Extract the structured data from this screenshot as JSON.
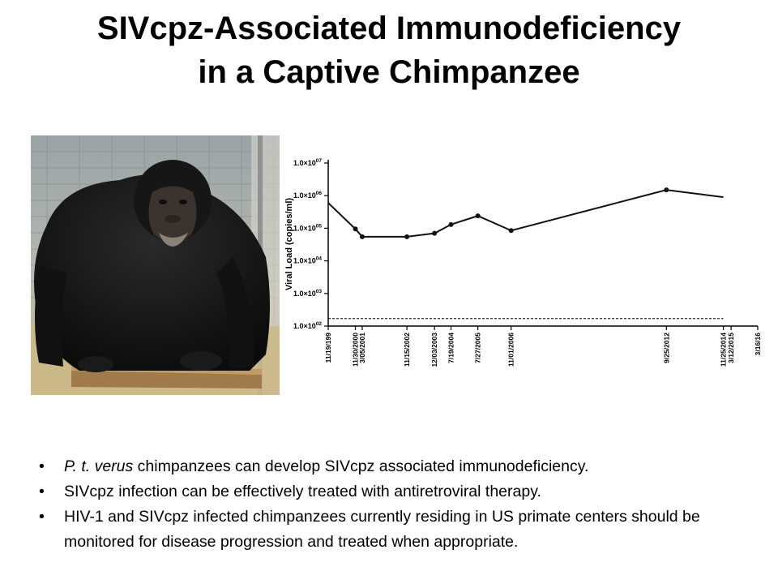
{
  "slide": {
    "title_line1": "SIVcpz-Associated Immunodeficiency",
    "title_line2": "in a Captive Chimpanzee"
  },
  "photo": {
    "subject": "chimpanzee-photo"
  },
  "chart_data": {
    "type": "line",
    "ylabel": "Viral Load (copies/ml)",
    "y_scale": "log",
    "ylim": [
      100,
      10000000
    ],
    "y_ticks": [
      {
        "value": 10000000,
        "mantissa": "1.0×10",
        "exp": "07"
      },
      {
        "value": 1000000,
        "mantissa": "1.0×10",
        "exp": "06"
      },
      {
        "value": 100000,
        "mantissa": "1.0×10",
        "exp": "05"
      },
      {
        "value": 10000,
        "mantissa": "1.0×10",
        "exp": "04"
      },
      {
        "value": 1000,
        "mantissa": "1.0×10",
        "exp": "03"
      },
      {
        "value": 100,
        "mantissa": "1.0×10",
        "exp": "02"
      }
    ],
    "x_type": "date",
    "xlim": [
      "1999-11-19",
      "2016-03-16"
    ],
    "x_tick_labels": [
      {
        "date": "1999-11-19",
        "label": "11/19/199"
      },
      {
        "date": "2000-11-30",
        "label": "11/30/2000"
      },
      {
        "date": "2001-03-05",
        "label": "3/05/2001"
      },
      {
        "date": "2002-11-15",
        "label": "11/15/2002"
      },
      {
        "date": "2003-12-03",
        "label": "12/03/2003"
      },
      {
        "date": "2004-07-19",
        "label": "7/19/2004"
      },
      {
        "date": "2005-07-27",
        "label": "7/27/2005"
      },
      {
        "date": "2006-11-01",
        "label": "11/01/2006"
      },
      {
        "date": "2012-09-25",
        "label": "9/25/2012"
      },
      {
        "date": "2014-11-25",
        "label": "11/25/2014"
      },
      {
        "date": "2015-03-12",
        "label": "3/12/2015"
      },
      {
        "date": "2016-03-16",
        "label": "3/16/16"
      }
    ],
    "series": [
      {
        "color": "#111111",
        "points": [
          {
            "date": "1999-11-19",
            "y": 600000,
            "marker": false
          },
          {
            "date": "2000-11-30",
            "y": 95000,
            "marker": true
          },
          {
            "date": "2001-03-05",
            "y": 55000,
            "marker": true
          },
          {
            "date": "2002-11-15",
            "y": 55000,
            "marker": true
          },
          {
            "date": "2003-12-03",
            "y": 70000,
            "marker": true
          },
          {
            "date": "2004-07-19",
            "y": 130000,
            "marker": true
          },
          {
            "date": "2005-07-27",
            "y": 240000,
            "marker": true
          },
          {
            "date": "2006-11-01",
            "y": 85000,
            "marker": true
          },
          {
            "date": "2012-09-25",
            "y": 1500000,
            "marker": true
          },
          {
            "date": "2014-11-25",
            "y": 900000,
            "marker": false
          }
        ]
      }
    ],
    "detection_limit": 170,
    "detection_line_style": "dashed"
  },
  "bullets": [
    {
      "lead": "P. t. verus",
      "text": " chimpanzees can develop SIVcpz associated immunodeficiency."
    },
    {
      "lead": "",
      "text": "SIVcpz infection can be effectively treated with antiretroviral therapy."
    },
    {
      "lead": "",
      "text": "HIV-1 and SIVcpz infected chimpanzees currently residing in US primate centers should be monitored for disease progression and treated when appropriate."
    }
  ],
  "bullet_symbol": "•"
}
